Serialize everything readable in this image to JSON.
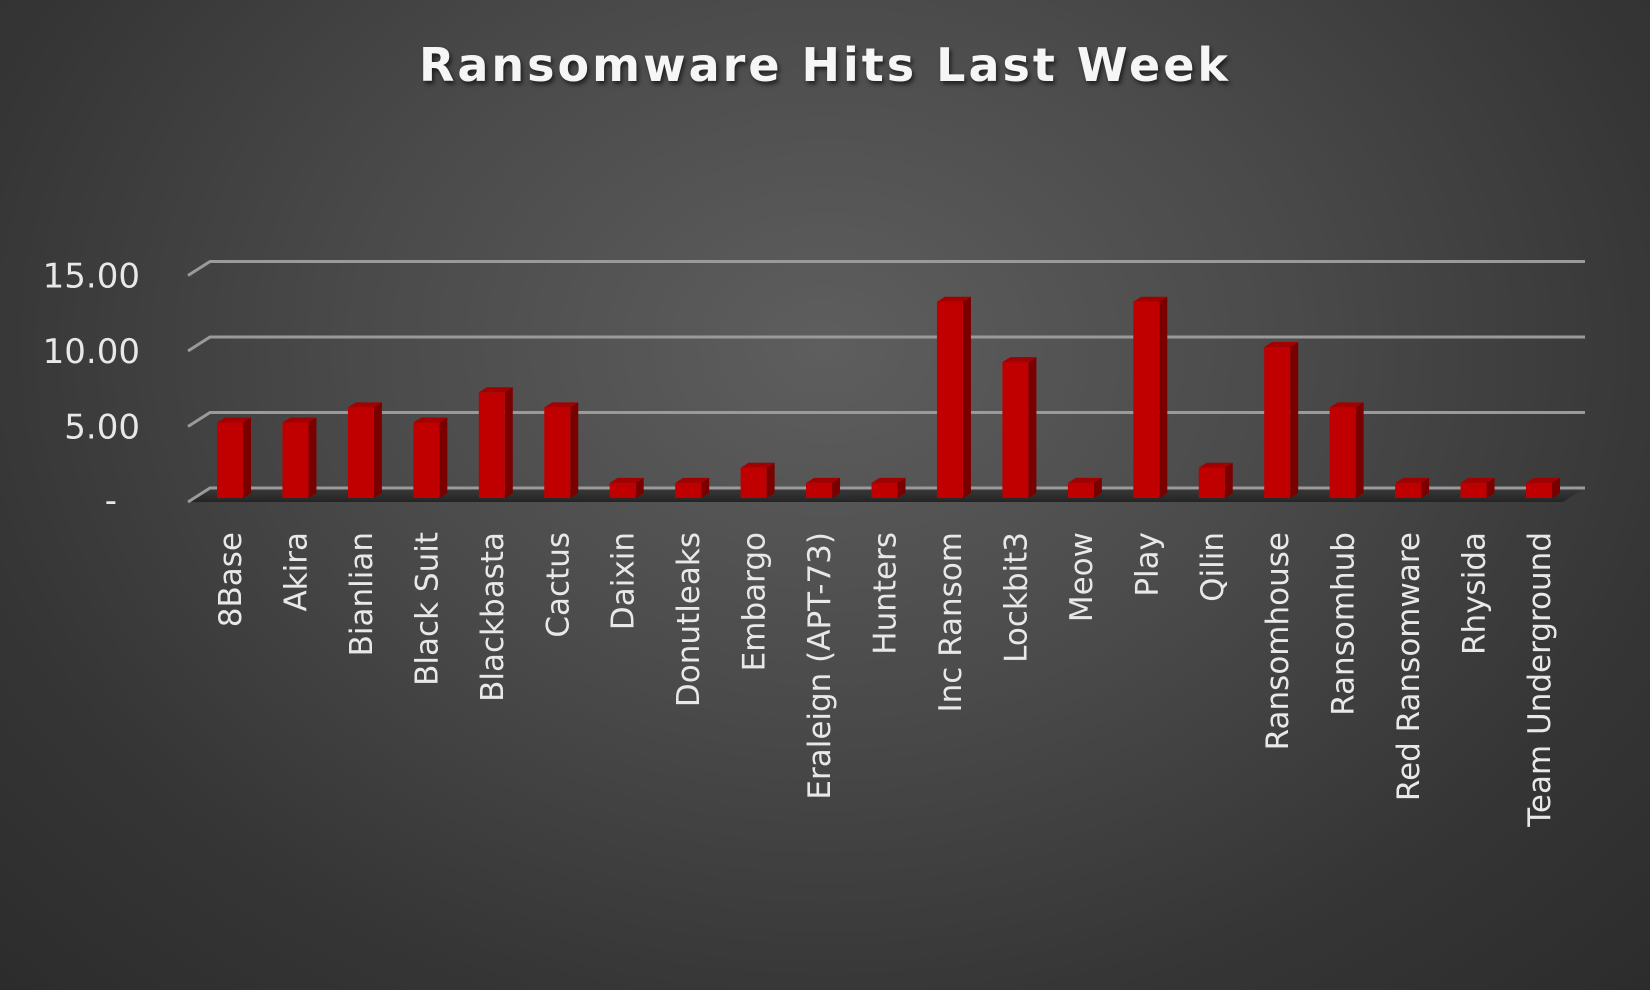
{
  "chart_data": {
    "type": "bar",
    "title": "Ransomware Hits Last Week",
    "xlabel": "",
    "ylabel": "",
    "ylim": [
      0,
      15
    ],
    "yticks": [
      {
        "value": 0,
        "label": "-"
      },
      {
        "value": 5,
        "label": "5.00"
      },
      {
        "value": 10,
        "label": "10.00"
      },
      {
        "value": 15,
        "label": "15.00"
      }
    ],
    "grid": true,
    "bar_color": "#c00000",
    "categories": [
      "8Base",
      "Akira",
      "Bianlian",
      "Black Suit",
      "Blackbasta",
      "Cactus",
      "Daixin",
      "Donutleaks",
      "Embargo",
      "Eraleign (APT-73)",
      "Hunters",
      "Inc Ransom",
      "Lockbit3",
      "Meow",
      "Play",
      "Qilin",
      "Ransomhouse",
      "Ransomhub",
      "Red Ransomware",
      "Rhysida",
      "Team Underground"
    ],
    "values": [
      5,
      5,
      6,
      5,
      7,
      6,
      1,
      1,
      2,
      1,
      1,
      13,
      9,
      1,
      13,
      2,
      10,
      6,
      1,
      1,
      1
    ]
  }
}
